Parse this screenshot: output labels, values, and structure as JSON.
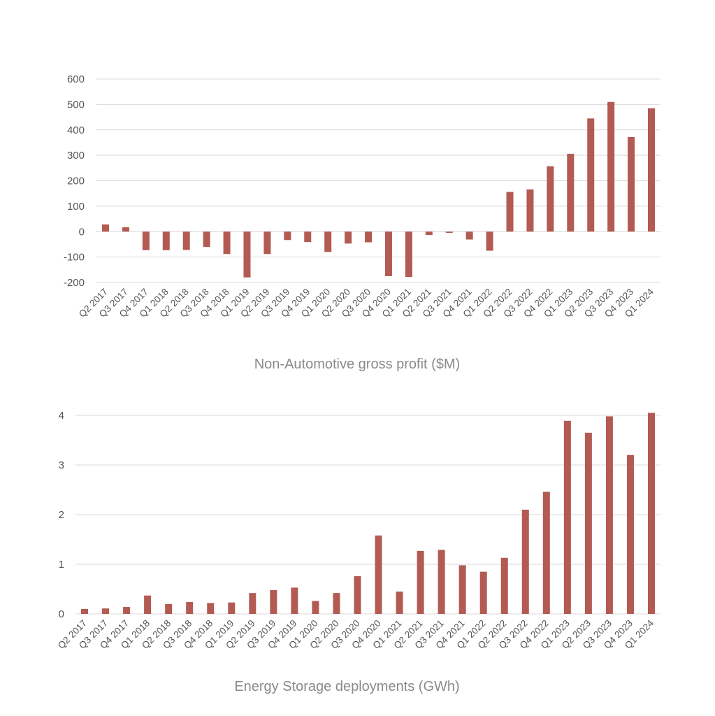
{
  "chart_data": [
    {
      "type": "bar",
      "title": "Non-Automotive gross profit ($M)",
      "xlabel": "",
      "ylabel": "",
      "ylim": [
        -200,
        600
      ],
      "yticks": [
        600,
        500,
        400,
        300,
        200,
        100,
        0,
        -100,
        -200
      ],
      "grid": true,
      "color": "#b35a52",
      "categories": [
        "Q2 2017",
        "Q3 2017",
        "Q4 2017",
        "Q1 2018",
        "Q2 2018",
        "Q3 2018",
        "Q4 2018",
        "Q1 2019",
        "Q2 2019",
        "Q3 2019",
        "Q4 2019",
        "Q1 2020",
        "Q2 2020",
        "Q3 2020",
        "Q4 2020",
        "Q1 2021",
        "Q2 2021",
        "Q3 2021",
        "Q4 2021",
        "Q1 2022",
        "Q2 2022",
        "Q3 2022",
        "Q4 2022",
        "Q1 2023",
        "Q2 2023",
        "Q3 2023",
        "Q4 2023",
        "Q1 2024"
      ],
      "values": [
        28,
        17,
        -73,
        -73,
        -72,
        -60,
        -88,
        -180,
        -88,
        -33,
        -41,
        -80,
        -47,
        -42,
        -175,
        -178,
        -13,
        -5,
        -31,
        -75,
        156,
        166,
        257,
        306,
        445,
        510,
        372,
        485
      ]
    },
    {
      "type": "bar",
      "title": "Energy Storage deployments (GWh)",
      "xlabel": "",
      "ylabel": "",
      "ylim": [
        0,
        4
      ],
      "yticks": [
        4,
        3,
        2,
        1,
        0
      ],
      "grid": true,
      "color": "#b35a52",
      "categories": [
        "Q2 2017",
        "Q3 2017",
        "Q4 2017",
        "Q1 2018",
        "Q2 2018",
        "Q3 2018",
        "Q4 2018",
        "Q1 2019",
        "Q2 2019",
        "Q3 2019",
        "Q4 2019",
        "Q1 2020",
        "Q2 2020",
        "Q3 2020",
        "Q4 2020",
        "Q1 2021",
        "Q2 2021",
        "Q3 2021",
        "Q4 2021",
        "Q1 2022",
        "Q2 2022",
        "Q3 2022",
        "Q4 2022",
        "Q1 2023",
        "Q2 2023",
        "Q3 2023",
        "Q4 2023",
        "Q1 2024"
      ],
      "values": [
        0.1,
        0.11,
        0.14,
        0.37,
        0.2,
        0.24,
        0.22,
        0.23,
        0.42,
        0.48,
        0.53,
        0.26,
        0.42,
        0.76,
        1.58,
        0.45,
        1.27,
        1.29,
        0.98,
        0.85,
        1.13,
        2.1,
        2.46,
        3.89,
        3.65,
        3.98,
        3.2,
        4.05
      ]
    }
  ]
}
